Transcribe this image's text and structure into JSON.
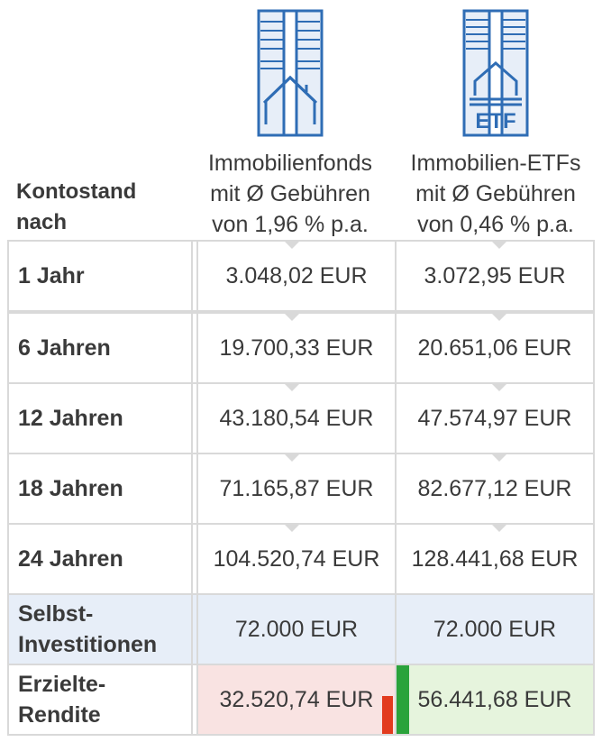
{
  "header": {
    "row_label": [
      "Kontostand",
      "nach"
    ],
    "columns": [
      {
        "icon": "building-icon",
        "lines": [
          "Immobilienfonds",
          "mit Ø Gebühren",
          "von 1,96 % p.a."
        ]
      },
      {
        "icon": "building-etf-icon",
        "icon_text": "ETF",
        "lines": [
          "Immobilien-ETFs",
          "mit Ø Gebühren",
          "von 0,46 % p.a."
        ]
      }
    ]
  },
  "rows": [
    {
      "label": [
        "1 Jahr"
      ],
      "values": [
        "3.048,02 EUR",
        "3.072,95 EUR"
      ]
    },
    {
      "label": [
        "6 Jahren"
      ],
      "values": [
        "19.700,33 EUR",
        "20.651,06 EUR"
      ]
    },
    {
      "label": [
        "12 Jahren"
      ],
      "values": [
        "43.180,54 EUR",
        "47.574,97 EUR"
      ]
    },
    {
      "label": [
        "18 Jahren"
      ],
      "values": [
        "71.165,87 EUR",
        "82.677,12 EUR"
      ]
    },
    {
      "label": [
        "24 Jahren"
      ],
      "values": [
        "104.520,74 EUR",
        "128.441,68 EUR"
      ]
    },
    {
      "label": [
        "Selbst-",
        "Investitionen"
      ],
      "values": [
        "72.000 EUR",
        "72.000 EUR"
      ]
    },
    {
      "label": [
        "Erzielte-",
        "Rendite"
      ],
      "values": [
        "32.520,74 EUR",
        "56.441,68 EUR"
      ]
    }
  ],
  "colors": {
    "border": "#d9d9d9",
    "icon_blue": "#2f6db5",
    "invest_bg": "#e7eef8",
    "return_red_bg": "#f9e3e2",
    "return_green_bg": "#e6f4dd",
    "bar_red": "#e23b1f",
    "bar_green": "#2aa33b"
  }
}
